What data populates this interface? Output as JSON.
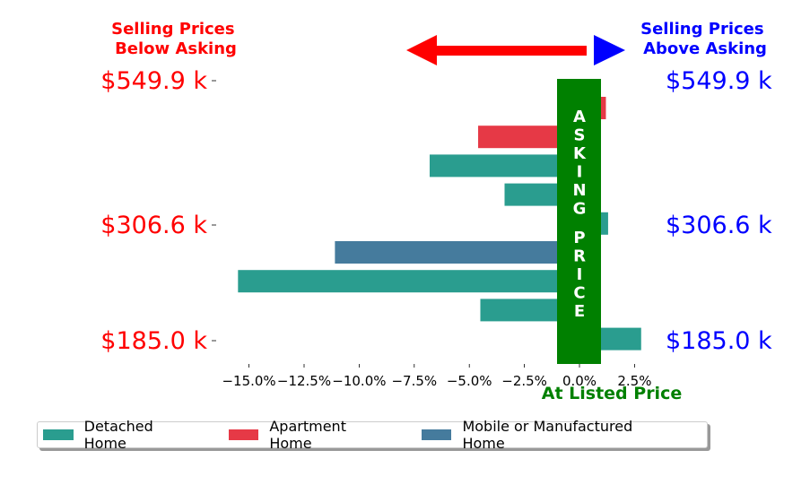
{
  "chart_data": {
    "type": "bar",
    "orientation": "horizontal",
    "xlim": [
      -16.5,
      3.5
    ],
    "x_ticks": [
      -15.0,
      -12.5,
      -10.0,
      -7.5,
      -5.0,
      -2.5,
      0.0,
      2.5
    ],
    "x_tick_labels": [
      "−15.0%",
      "−12.5%",
      "−10.0%",
      "−7.5%",
      "−5.0%",
      "−2.5%",
      "0.0%",
      "2.5%"
    ],
    "y_tick_labels_left": [
      "$549.9 k",
      "$306.6 k",
      "$185.0 k"
    ],
    "y_tick_labels_right": [
      "$549.9 k",
      "$306.6 k",
      "$185.0 k"
    ],
    "bars": [
      {
        "value": 1.2,
        "category": "Apartment Home"
      },
      {
        "value": -4.6,
        "category": "Apartment Home"
      },
      {
        "value": -6.8,
        "category": "Detached Home"
      },
      {
        "value": -3.4,
        "category": "Detached Home"
      },
      {
        "value": 1.3,
        "category": "Detached Home"
      },
      {
        "value": -11.1,
        "category": "Mobile or Manufactured Home"
      },
      {
        "value": -15.5,
        "category": "Detached Home"
      },
      {
        "value": -4.5,
        "category": "Detached Home"
      },
      {
        "value": 2.8,
        "category": "Detached Home"
      }
    ],
    "legend": [
      {
        "name": "Detached Home",
        "color": "#2a9d8f"
      },
      {
        "name": "Apartment Home",
        "color": "#e63946"
      },
      {
        "name": "Mobile or Manufactured Home",
        "color": "#457b9d"
      }
    ],
    "legend_position": "bottom-center"
  },
  "annotations": {
    "below_title": "Selling Prices\nBelow Asking",
    "above_title": "Selling Prices\nAbove Asking",
    "asking_price_text": "ASKING PRICE",
    "at_listed_price": "At Listed Price"
  },
  "colors": {
    "below": "#ff0000",
    "above": "#0000ff",
    "asking": "#008000"
  }
}
